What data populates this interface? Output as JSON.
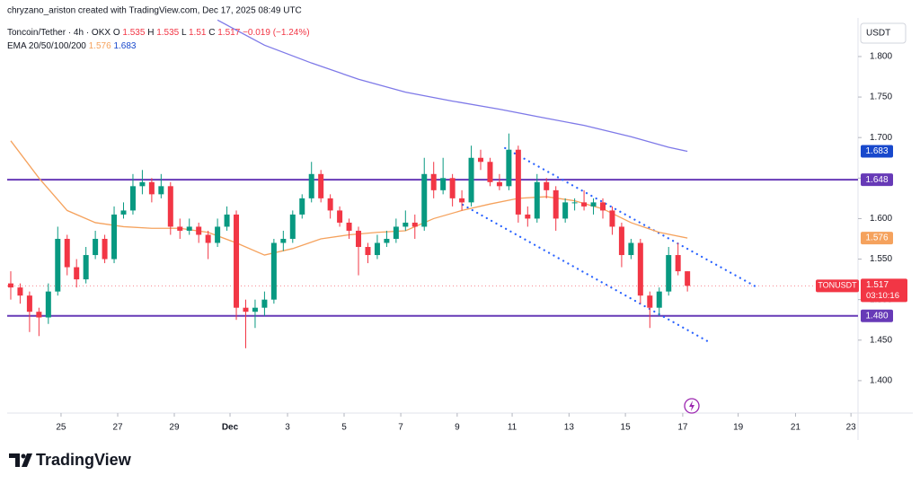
{
  "chart_data": {
    "type": "candlestick",
    "credit": "chryzano_ariston created with TradingView.com, Dec 17, 2025 08:49 UTC",
    "symbol": "Toncoin/Tether · 4h · OKX",
    "ohlc_letters": [
      "O",
      "H",
      "L",
      "C"
    ],
    "change": "−0.019 (−1.24%)",
    "indicator": "EMA 20/50/100/200",
    "currency": "USDT",
    "ticker": "TONUSDT",
    "countdown": "03:10:16",
    "brand": "TradingView",
    "up_color": "#089981",
    "down_color": "#f23645",
    "ohlc": [
      [
        1.52,
        1.535,
        1.5,
        1.515
      ],
      [
        1.515,
        1.52,
        1.495,
        1.505
      ],
      [
        1.505,
        1.51,
        1.46,
        1.485
      ],
      [
        1.485,
        1.49,
        1.455,
        1.478
      ],
      [
        1.478,
        1.52,
        1.47,
        1.51
      ],
      [
        1.51,
        1.59,
        1.505,
        1.575
      ],
      [
        1.575,
        1.58,
        1.53,
        1.54
      ],
      [
        1.54,
        1.55,
        1.515,
        1.525
      ],
      [
        1.525,
        1.565,
        1.52,
        1.555
      ],
      [
        1.555,
        1.585,
        1.55,
        1.575
      ],
      [
        1.575,
        1.58,
        1.545,
        1.55
      ],
      [
        1.55,
        1.615,
        1.545,
        1.605
      ],
      [
        1.605,
        1.62,
        1.6,
        1.61
      ],
      [
        1.61,
        1.655,
        1.605,
        1.64
      ],
      [
        1.64,
        1.66,
        1.63,
        1.645
      ],
      [
        1.645,
        1.65,
        1.62,
        1.63
      ],
      [
        1.63,
        1.655,
        1.625,
        1.64
      ],
      [
        1.64,
        1.645,
        1.58,
        1.59
      ],
      [
        1.59,
        1.6,
        1.575,
        1.585
      ],
      [
        1.585,
        1.6,
        1.58,
        1.59
      ],
      [
        1.59,
        1.595,
        1.57,
        1.58
      ],
      [
        1.58,
        1.585,
        1.55,
        1.57
      ],
      [
        1.57,
        1.6,
        1.565,
        1.59
      ],
      [
        1.59,
        1.615,
        1.585,
        1.605
      ],
      [
        1.605,
        1.61,
        1.475,
        1.49
      ],
      [
        1.49,
        1.5,
        1.44,
        1.485
      ],
      [
        1.485,
        1.5,
        1.465,
        1.49
      ],
      [
        1.49,
        1.51,
        1.48,
        1.5
      ],
      [
        1.5,
        1.575,
        1.495,
        1.57
      ],
      [
        1.57,
        1.585,
        1.56,
        1.575
      ],
      [
        1.575,
        1.61,
        1.57,
        1.605
      ],
      [
        1.605,
        1.63,
        1.6,
        1.625
      ],
      [
        1.625,
        1.67,
        1.62,
        1.655
      ],
      [
        1.655,
        1.66,
        1.62,
        1.625
      ],
      [
        1.625,
        1.63,
        1.6,
        1.61
      ],
      [
        1.61,
        1.615,
        1.59,
        1.595
      ],
      [
        1.595,
        1.6,
        1.575,
        1.585
      ],
      [
        1.585,
        1.59,
        1.53,
        1.565
      ],
      [
        1.565,
        1.57,
        1.545,
        1.555
      ],
      [
        1.555,
        1.58,
        1.55,
        1.57
      ],
      [
        1.57,
        1.585,
        1.565,
        1.575
      ],
      [
        1.575,
        1.6,
        1.57,
        1.59
      ],
      [
        1.59,
        1.61,
        1.585,
        1.595
      ],
      [
        1.595,
        1.605,
        1.575,
        1.59
      ],
      [
        1.59,
        1.675,
        1.585,
        1.655
      ],
      [
        1.655,
        1.67,
        1.625,
        1.635
      ],
      [
        1.635,
        1.675,
        1.63,
        1.65
      ],
      [
        1.65,
        1.655,
        1.615,
        1.625
      ],
      [
        1.625,
        1.635,
        1.61,
        1.62
      ],
      [
        1.62,
        1.69,
        1.615,
        1.675
      ],
      [
        1.675,
        1.685,
        1.66,
        1.67
      ],
      [
        1.67,
        1.675,
        1.64,
        1.645
      ],
      [
        1.645,
        1.655,
        1.635,
        1.64
      ],
      [
        1.64,
        1.705,
        1.635,
        1.685
      ],
      [
        1.685,
        1.69,
        1.595,
        1.605
      ],
      [
        1.605,
        1.615,
        1.59,
        1.6
      ],
      [
        1.6,
        1.655,
        1.595,
        1.645
      ],
      [
        1.645,
        1.65,
        1.625,
        1.635
      ],
      [
        1.635,
        1.64,
        1.585,
        1.6
      ],
      [
        1.6,
        1.625,
        1.595,
        1.62
      ],
      [
        1.62,
        1.625,
        1.61,
        1.62
      ],
      [
        1.62,
        1.635,
        1.61,
        1.615
      ],
      [
        1.615,
        1.625,
        1.605,
        1.62
      ],
      [
        1.62,
        1.625,
        1.6,
        1.61
      ],
      [
        1.61,
        1.615,
        1.58,
        1.59
      ],
      [
        1.59,
        1.595,
        1.54,
        1.555
      ],
      [
        1.555,
        1.575,
        1.55,
        1.57
      ],
      [
        1.57,
        1.575,
        1.495,
        1.505
      ],
      [
        1.505,
        1.51,
        1.465,
        1.49
      ],
      [
        1.49,
        1.515,
        1.48,
        1.51
      ],
      [
        1.51,
        1.565,
        1.505,
        1.555
      ],
      [
        1.555,
        1.57,
        1.53,
        1.535
      ],
      [
        1.535,
        1.535,
        1.51,
        1.517
      ]
    ],
    "series": [
      {
        "color": "#f5a25d",
        "x": [
          0,
          3,
          6,
          9,
          12,
          15,
          18,
          21,
          24,
          27,
          30,
          33,
          36,
          39,
          42,
          45,
          48,
          51,
          54,
          57,
          60,
          63,
          66,
          69,
          72
        ],
        "values": [
          1.696,
          1.65,
          1.61,
          1.595,
          1.59,
          1.588,
          1.588,
          1.583,
          1.57,
          1.555,
          1.563,
          1.575,
          1.58,
          1.583,
          1.585,
          1.6,
          1.61,
          1.618,
          1.625,
          1.627,
          1.622,
          1.612,
          1.595,
          1.583,
          1.576
        ]
      },
      {
        "color": "#7e79e8",
        "x": [
          22,
          27,
          32,
          37,
          42,
          47,
          52,
          56,
          61,
          66,
          70,
          72
        ],
        "values": [
          1.845,
          1.814,
          1.792,
          1.772,
          1.756,
          1.745,
          1.735,
          1.726,
          1.715,
          1.701,
          1.688,
          1.683
        ],
        "badge_color": "#1848cc"
      }
    ],
    "levels": [
      {
        "value": 1.648,
        "label": "1.648",
        "color": "#673ab7"
      },
      {
        "value": 1.48,
        "label": "1.480",
        "color": "#673ab7"
      }
    ],
    "drawings": [
      {
        "x": [
          52.6,
          79.6
        ],
        "values": [
          1.687,
          1.514
        ],
        "color": "#2962ff"
      },
      {
        "x": [
          48.1,
          74.4
        ],
        "values": [
          1.617,
          1.447
        ],
        "color": "#2962ff"
      }
    ],
    "xlim": [
      -0.38,
      90.15
    ],
    "xticks": [
      {
        "value": 5.35,
        "label": "25"
      },
      {
        "value": 11.38,
        "label": "27"
      },
      {
        "value": 17.4,
        "label": "29"
      },
      {
        "value": 23.33,
        "label": "Dec"
      },
      {
        "value": 29.45,
        "label": "3"
      },
      {
        "value": 35.47,
        "label": "5"
      },
      {
        "value": 41.5,
        "label": "7"
      },
      {
        "value": 47.5,
        "label": "9"
      },
      {
        "value": 53.35,
        "label": "11"
      },
      {
        "value": 59.4,
        "label": "13"
      },
      {
        "value": 65.4,
        "label": "15"
      },
      {
        "value": 71.5,
        "label": "17"
      },
      {
        "value": 77.4,
        "label": "19"
      },
      {
        "value": 83.5,
        "label": "21"
      },
      {
        "value": 89.4,
        "label": "23"
      }
    ],
    "ylim": [
      1.36,
      1.8476
    ],
    "yticks": [
      {
        "value": 1.4,
        "label": "1.400"
      },
      {
        "value": 1.45,
        "label": "1.450"
      },
      {
        "value": 1.5,
        "label": "1.500"
      },
      {
        "value": 1.55,
        "label": "1.550"
      },
      {
        "value": 1.6,
        "label": "1.600"
      },
      {
        "value": 1.65,
        "label": "1.650"
      },
      {
        "value": 1.7,
        "label": "1.700"
      },
      {
        "value": 1.75,
        "label": "1.750"
      },
      {
        "value": 1.8,
        "label": "1.800"
      }
    ]
  }
}
